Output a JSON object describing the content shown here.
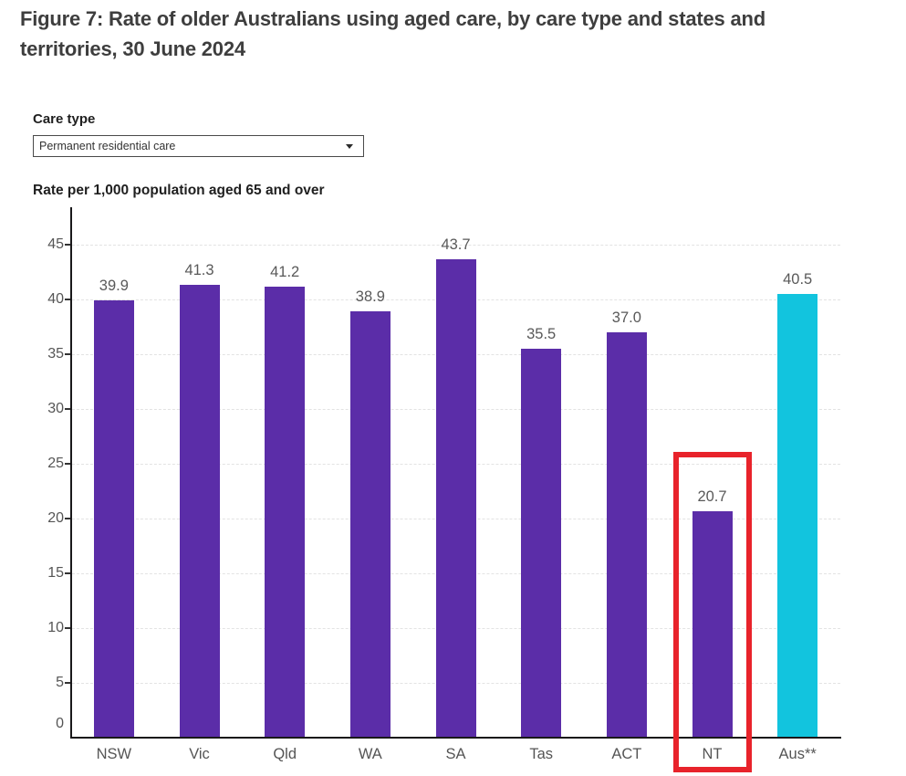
{
  "figure": {
    "title_line1": "Figure 7: Rate of older Australians using aged care, by care type and states and",
    "title_line2": "territories, 30 June 2024"
  },
  "controls": {
    "care_type_label": "Care type",
    "care_type_value": "Permanent residential care",
    "dropdown_icon": "chevron-down"
  },
  "chart_data": {
    "type": "bar",
    "title": "Figure 7: Rate of older Australians using aged care, by care type and states and territories, 30 June 2024",
    "ylabel": "Rate per 1,000 population aged 65 and over",
    "xlabel": "",
    "categories": [
      "NSW",
      "Vic",
      "Qld",
      "WA",
      "SA",
      "Tas",
      "ACT",
      "NT",
      "Aus**"
    ],
    "values": [
      39.9,
      41.3,
      41.2,
      38.9,
      43.7,
      35.5,
      37.0,
      20.7,
      40.5
    ],
    "value_labels": [
      "39.9",
      "41.3",
      "41.2",
      "38.9",
      "43.7",
      "35.5",
      "37.0",
      "20.7",
      "40.5"
    ],
    "bar_colors": [
      "#5b2da8",
      "#5b2da8",
      "#5b2da8",
      "#5b2da8",
      "#5b2da8",
      "#5b2da8",
      "#5b2da8",
      "#5b2da8",
      "#12c4de"
    ],
    "yticks": [
      0,
      5,
      10,
      15,
      20,
      25,
      30,
      35,
      40,
      45
    ],
    "ylim": [
      0,
      48.4
    ],
    "grid": "horizontal-dashed",
    "legend": "none",
    "highlight": {
      "category": "NT",
      "style": "red-box",
      "color": "#e8232b"
    }
  },
  "colors": {
    "bar_purple": "#5b2da8",
    "bar_cyan": "#12c4de",
    "highlight_red": "#e8232b",
    "title_text": "#3e3e3e",
    "axis_line": "#19181a",
    "tick_text": "#555555",
    "gridline": "#e3e3e3"
  }
}
